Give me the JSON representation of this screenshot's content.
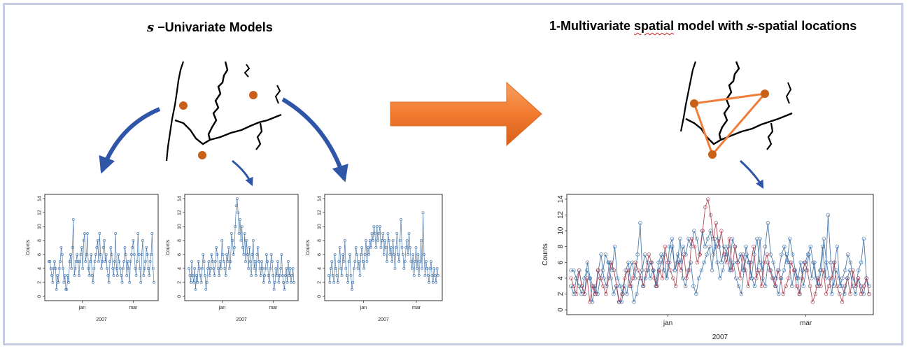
{
  "left": {
    "title_symbol": "s",
    "title_text": " −Univariate Models"
  },
  "right": {
    "title_prefix": "1-Multivariate ",
    "title_w1": "spatial",
    "title_mid": " model with ",
    "title_symbol": "s",
    "title_w2": "-spatial",
    "title_suffix": " locations"
  },
  "colors": {
    "frame": "#c5cbe0",
    "site_dot": "#c8601a",
    "triangle": "#f07e3a",
    "curved_arrow": "#2e55a8",
    "big_arrow": "#f07a2e",
    "series_blue": "#3a6ea5",
    "series_red": "#a83a4a"
  },
  "chart_data": [
    {
      "type": "line",
      "xlabel": "2007",
      "ylabel": "Counts",
      "xticks": [
        "jan",
        "mar"
      ],
      "ylim": [
        0,
        14
      ],
      "yticks": [
        0,
        2,
        4,
        6,
        8,
        10,
        12,
        14
      ],
      "series": [
        {
          "values": [
            5,
            5,
            4,
            3,
            2,
            4,
            5,
            4,
            1,
            3,
            2,
            4,
            5,
            7,
            6,
            4,
            2,
            3,
            1,
            1,
            3,
            2,
            5,
            6,
            4,
            7,
            11,
            3,
            4,
            5,
            6,
            5,
            3,
            5,
            6,
            7,
            4,
            8,
            9,
            5,
            6,
            9,
            4,
            3,
            5,
            6,
            3,
            2,
            4,
            5,
            6,
            7,
            8,
            5,
            9,
            6,
            4,
            5,
            7,
            8,
            5,
            6,
            4,
            3,
            2,
            5,
            7,
            6,
            4,
            3,
            5,
            9,
            4,
            3,
            6,
            5,
            4,
            3,
            2,
            4,
            5,
            7,
            6,
            3,
            5,
            4,
            2,
            5,
            6,
            7,
            8,
            6,
            4,
            3,
            5,
            9,
            6,
            4,
            2,
            6,
            8,
            3,
            4,
            5,
            7,
            6,
            4,
            3,
            5,
            6,
            9,
            4,
            2
          ]
        }
      ]
    },
    {
      "type": "line",
      "xlabel": "2007",
      "ylabel": "Counts",
      "xticks": [
        "jan",
        "mar"
      ],
      "ylim": [
        0,
        14
      ],
      "yticks": [
        0,
        2,
        4,
        6,
        8,
        10,
        12,
        14
      ],
      "series": [
        {
          "values": [
            4,
            3,
            2,
            5,
            3,
            2,
            4,
            1,
            3,
            2,
            5,
            4,
            3,
            2,
            4,
            6,
            5,
            3,
            1,
            2,
            4,
            5,
            3,
            4,
            6,
            5,
            4,
            3,
            5,
            7,
            6,
            4,
            3,
            5,
            4,
            8,
            6,
            5,
            4,
            3,
            6,
            5,
            7,
            4,
            5,
            9,
            8,
            6,
            7,
            10,
            13,
            14,
            12,
            9,
            11,
            8,
            10,
            7,
            6,
            9,
            5,
            8,
            6,
            4,
            7,
            5,
            3,
            6,
            8,
            4,
            5,
            3,
            6,
            7,
            5,
            4,
            3,
            5,
            4,
            2,
            3,
            4,
            6,
            5,
            3,
            2,
            4,
            6,
            5,
            3,
            1,
            2,
            4,
            3,
            5,
            2,
            3,
            4,
            6,
            3,
            2,
            1,
            3,
            4,
            2,
            5,
            3,
            4,
            2,
            3,
            4,
            2
          ]
        }
      ]
    },
    {
      "type": "line",
      "xlabel": "2007",
      "ylabel": "Counts",
      "xticks": [
        "jan",
        "mar"
      ],
      "ylim": [
        0,
        14
      ],
      "yticks": [
        0,
        2,
        4,
        6,
        8,
        10,
        12,
        14
      ],
      "series": [
        {
          "values": [
            3,
            2,
            4,
            5,
            3,
            2,
            6,
            4,
            3,
            2,
            5,
            7,
            4,
            3,
            6,
            5,
            8,
            4,
            3,
            2,
            5,
            6,
            3,
            1,
            2,
            4,
            5,
            7,
            6,
            4,
            5,
            3,
            6,
            7,
            5,
            4,
            6,
            8,
            5,
            7,
            6,
            8,
            7,
            9,
            8,
            10,
            9,
            7,
            10,
            8,
            9,
            10,
            7,
            8,
            9,
            6,
            8,
            7,
            5,
            9,
            8,
            6,
            7,
            5,
            8,
            6,
            4,
            7,
            9,
            6,
            5,
            8,
            11,
            7,
            6,
            4,
            5,
            7,
            8,
            6,
            9,
            7,
            5,
            4,
            6,
            3,
            5,
            7,
            4,
            6,
            3,
            5,
            8,
            4,
            12,
            6,
            3,
            5,
            4,
            3,
            2,
            4,
            5,
            3,
            2,
            4,
            3,
            2,
            4,
            3
          ]
        }
      ]
    },
    {
      "type": "line",
      "xlabel": "2007",
      "ylabel": "Counts",
      "xticks": [
        "jan",
        "mar"
      ],
      "ylim": [
        0,
        14
      ],
      "yticks": [
        0,
        2,
        4,
        6,
        8,
        10,
        12,
        14
      ],
      "series": [
        {
          "values": [
            5,
            5,
            4,
            3,
            2,
            4,
            5,
            4,
            1,
            3,
            2,
            4,
            5,
            7,
            6,
            4,
            2,
            3,
            1,
            1,
            3,
            2,
            5,
            6,
            4,
            7,
            11,
            3,
            4,
            5,
            6,
            5,
            3,
            5,
            6,
            7,
            4,
            8,
            9,
            5,
            6,
            9,
            4,
            3,
            5,
            6,
            3,
            2,
            4,
            5,
            6,
            7,
            8,
            5,
            9,
            6,
            4,
            5,
            7,
            8,
            5,
            6,
            4,
            3,
            2,
            5,
            7,
            6,
            4,
            3,
            5,
            9,
            4,
            3,
            6,
            5,
            4,
            3,
            2,
            4,
            5,
            7,
            6,
            3,
            5,
            4,
            2,
            5,
            6,
            7,
            8,
            6,
            4,
            3,
            5,
            9,
            6,
            4,
            2,
            6,
            8,
            3,
            4,
            5,
            7,
            6,
            4,
            3,
            5,
            6,
            9,
            4,
            2
          ]
        },
        {
          "values": [
            4,
            3,
            2,
            5,
            3,
            2,
            4,
            1,
            3,
            2,
            5,
            4,
            3,
            2,
            4,
            6,
            5,
            3,
            1,
            2,
            4,
            5,
            3,
            4,
            6,
            5,
            4,
            3,
            5,
            7,
            6,
            4,
            3,
            5,
            4,
            8,
            6,
            5,
            4,
            3,
            6,
            5,
            7,
            4,
            5,
            9,
            8,
            6,
            7,
            10,
            13,
            14,
            12,
            9,
            11,
            8,
            10,
            7,
            6,
            9,
            5,
            8,
            6,
            4,
            7,
            5,
            3,
            6,
            8,
            4,
            5,
            3,
            6,
            7,
            5,
            4,
            3,
            5,
            4,
            2,
            3,
            4,
            6,
            5,
            3,
            2,
            4,
            6,
            5,
            3,
            1,
            2,
            4,
            3,
            5,
            2,
            3,
            4,
            6,
            3,
            2,
            1,
            3,
            4,
            2,
            5,
            3,
            4,
            2,
            3,
            4,
            2
          ]
        },
        {
          "values": [
            3,
            2,
            4,
            5,
            3,
            2,
            6,
            4,
            3,
            2,
            5,
            7,
            4,
            3,
            6,
            5,
            8,
            4,
            3,
            2,
            5,
            6,
            3,
            1,
            2,
            4,
            5,
            7,
            6,
            4,
            5,
            3,
            6,
            7,
            5,
            4,
            6,
            8,
            5,
            7,
            6,
            8,
            7,
            9,
            8,
            10,
            9,
            7,
            10,
            8,
            9,
            10,
            7,
            8,
            9,
            6,
            8,
            7,
            5,
            9,
            8,
            6,
            7,
            5,
            8,
            6,
            4,
            7,
            9,
            6,
            5,
            8,
            11,
            7,
            6,
            4,
            5,
            7,
            8,
            6,
            9,
            7,
            5,
            4,
            6,
            3,
            5,
            7,
            4,
            6,
            3,
            5,
            8,
            4,
            12,
            6,
            3,
            5,
            4,
            3,
            2,
            4,
            5,
            3,
            2,
            4,
            3,
            2,
            4,
            3
          ]
        }
      ]
    }
  ]
}
